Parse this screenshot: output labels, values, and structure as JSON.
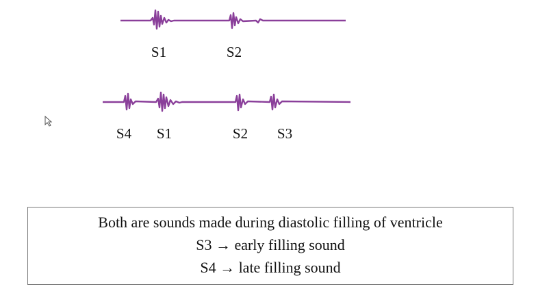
{
  "top_row": {
    "labels": [
      "S1",
      "S2"
    ]
  },
  "bottom_row": {
    "labels": [
      "S4",
      "S1",
      "S2",
      "S3"
    ]
  },
  "note_box": {
    "lines": [
      "Both are sounds made during diastolic filling of ventricle",
      "S3 → early filling sound",
      "S4 → late filling sound"
    ]
  }
}
